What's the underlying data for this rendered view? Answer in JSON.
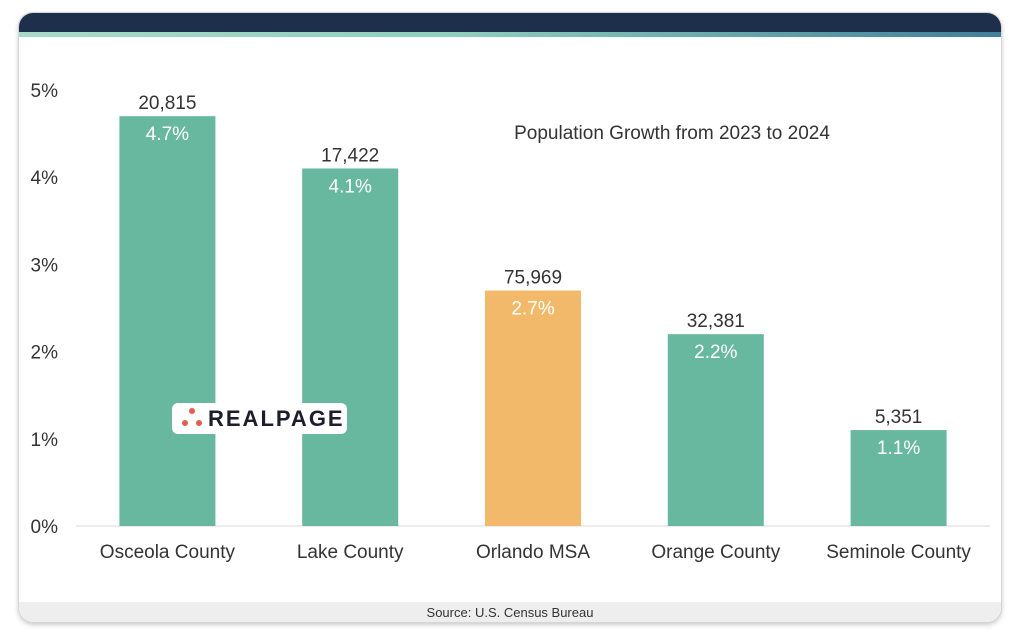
{
  "chart_data": {
    "type": "bar",
    "title": "Population Growth from 2023 to 2024",
    "categories": [
      "Osceola County",
      "Lake County",
      "Orlando MSA",
      "Orange County",
      "Seminole County"
    ],
    "values": [
      4.7,
      4.1,
      2.7,
      2.2,
      1.1
    ],
    "value_labels": [
      "4.7%",
      "4.1%",
      "2.7%",
      "2.2%",
      "1.1%"
    ],
    "count_labels": [
      "20,815",
      "17,422",
      "75,969",
      "32,381",
      "5,351"
    ],
    "bar_colors": [
      "#68b8a0",
      "#68b8a0",
      "#f2b96a",
      "#68b8a0",
      "#68b8a0"
    ],
    "ylim": [
      0,
      5
    ],
    "yticks": [
      0,
      1,
      2,
      3,
      4,
      5
    ],
    "ytick_labels": [
      "0%",
      "1%",
      "2%",
      "3%",
      "4%",
      "5%"
    ],
    "xlabel": "",
    "ylabel": "",
    "grid": false
  },
  "footer": {
    "source": "Source: U.S. Census Bureau"
  },
  "logo": {
    "text": "REALPAGE",
    "accent_color": "#e85a4f"
  }
}
